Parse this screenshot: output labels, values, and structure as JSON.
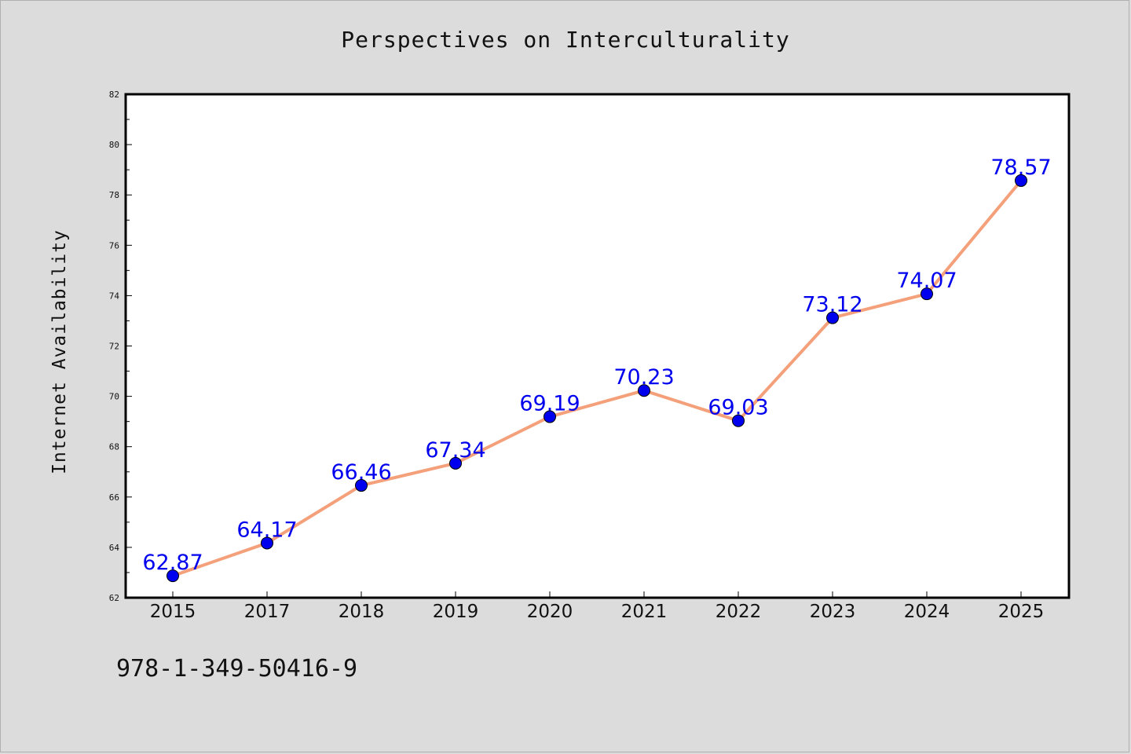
{
  "page": {
    "background": "#dcdcdc",
    "isbn": "978-1-349-50416-9"
  },
  "chart_data": {
    "type": "line",
    "title": "Perspectives on Interculturality",
    "xlabel": "",
    "ylabel": "Internet Availability",
    "categories": [
      "2015",
      "2017",
      "2018",
      "2019",
      "2020",
      "2021",
      "2022",
      "2023",
      "2024",
      "2025"
    ],
    "series": [
      {
        "values": [
          62.87,
          64.17,
          66.46,
          67.34,
          69.19,
          70.23,
          69.03,
          73.12,
          74.07,
          78.57
        ],
        "data_labels": [
          "62.87",
          "64.17",
          "66.46",
          "67.34",
          "69.19",
          "70.23",
          "69.03",
          "73.12",
          "74.07",
          "78.57"
        ],
        "line_color": "#f4a07a",
        "marker_color": "#0000ee",
        "label_color": "#0000ee"
      }
    ],
    "ylim": [
      62,
      82
    ],
    "y_ticks": [
      "62",
      "64",
      "66",
      "68",
      "70",
      "72",
      "74",
      "76",
      "78",
      "80",
      "82"
    ],
    "grid": false,
    "legend": "none",
    "plot_background": "#ffffff"
  }
}
